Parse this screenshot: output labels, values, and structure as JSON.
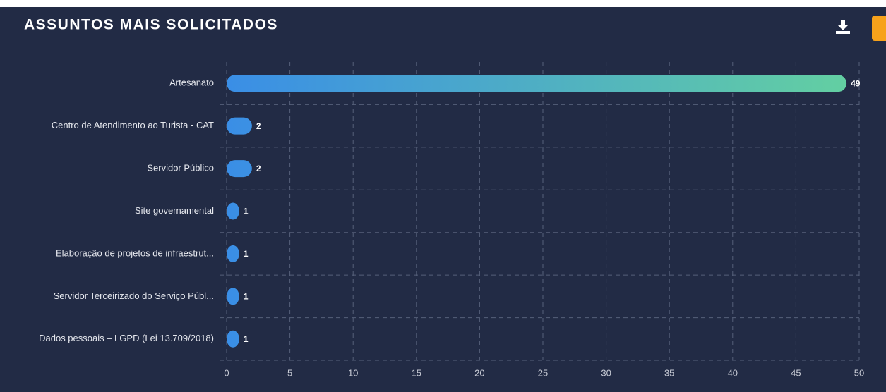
{
  "chart_data": {
    "type": "bar",
    "orientation": "horizontal",
    "title": "ASSUNTOS MAIS SOLICITADOS",
    "categories": [
      "Artesanato",
      "Centro de Atendimento ao Turista - CAT",
      "Servidor Público",
      "Site governamental",
      "Elaboração de projetos de infraestrut...",
      "Servidor Terceirizado do Serviço Públ...",
      "Dados pessoais – LGPD (Lei 13.709/2018)"
    ],
    "values": [
      49,
      2,
      2,
      1,
      1,
      1,
      1
    ],
    "color": "#3a8ee6",
    "gradient": [
      "#3a8ee6",
      "#63cfa2"
    ],
    "xlim": [
      0,
      50
    ],
    "xticks": [
      0,
      5,
      10,
      15,
      20,
      25,
      30,
      35,
      40,
      45,
      50
    ],
    "grid": true
  }
}
